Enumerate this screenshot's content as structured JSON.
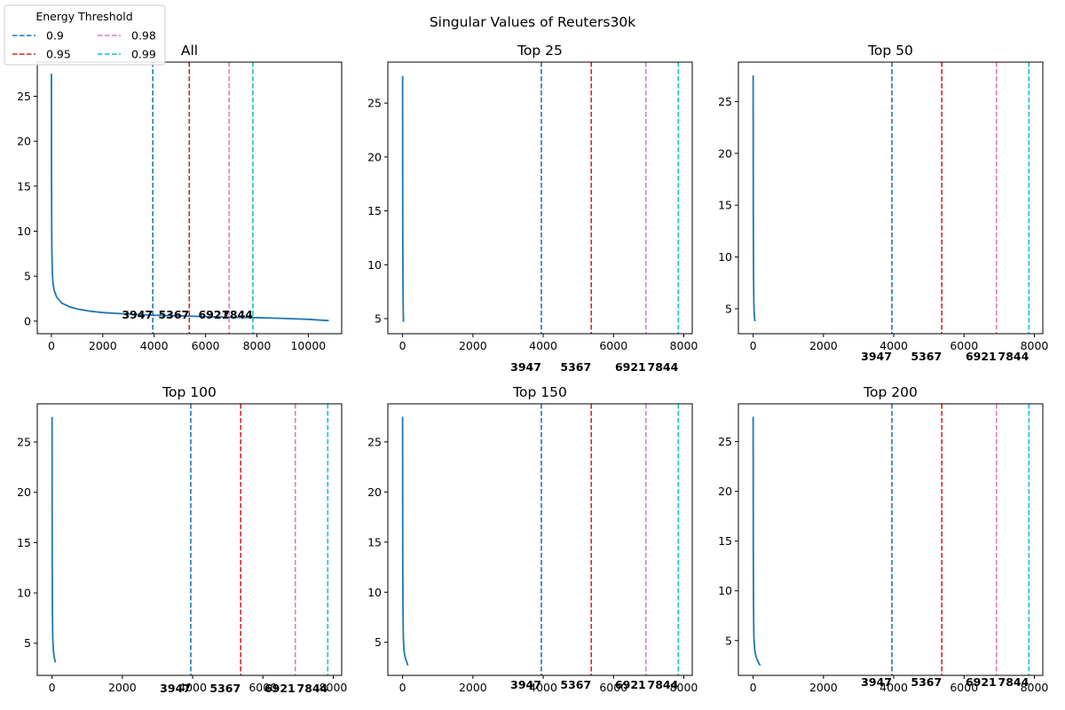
{
  "title": "Singular Values of Reuters30k",
  "legend": {
    "title": "Energy Threshold",
    "placement": "upper-left",
    "entries": [
      {
        "label": "0.9",
        "color": "#1f77b4"
      },
      {
        "label": "0.95",
        "color": "#d62728"
      },
      {
        "label": "0.98",
        "color": "#e377c2"
      },
      {
        "label": "0.99",
        "color": "#17becf"
      }
    ]
  },
  "chart_data": [
    {
      "type": "line",
      "title": "All",
      "series_color": "#1f77b4",
      "xlim": [
        -550,
        11300
      ],
      "ylim": [
        -1.4,
        28.8
      ],
      "xticks": [
        0,
        2000,
        4000,
        6000,
        8000,
        10000
      ],
      "yticks": [
        0,
        5,
        10,
        15,
        20,
        25
      ],
      "curve": [
        [
          0,
          27.5
        ],
        [
          5,
          16
        ],
        [
          10,
          11
        ],
        [
          20,
          7.5
        ],
        [
          40,
          5.2
        ],
        [
          60,
          4.3
        ],
        [
          100,
          3.5
        ],
        [
          200,
          2.7
        ],
        [
          400,
          2.0
        ],
        [
          700,
          1.6
        ],
        [
          1000,
          1.35
        ],
        [
          1500,
          1.1
        ],
        [
          2000,
          0.95
        ],
        [
          3000,
          0.78
        ],
        [
          4000,
          0.65
        ],
        [
          5000,
          0.58
        ],
        [
          6000,
          0.5
        ],
        [
          7000,
          0.43
        ],
        [
          8000,
          0.38
        ],
        [
          9000,
          0.3
        ],
        [
          10000,
          0.2
        ],
        [
          10800,
          0.05
        ]
      ],
      "thresholds": [
        {
          "x": 3947,
          "label": "3947",
          "color": "#1f77b4"
        },
        {
          "x": 5367,
          "label": "5367",
          "color": "#d62728"
        },
        {
          "x": 6921,
          "label": "6921",
          "color": "#e377c2"
        },
        {
          "x": 7844,
          "label": "7844",
          "color": "#17becf"
        }
      ],
      "label_y": 0.55
    },
    {
      "type": "line",
      "title": "Top 25",
      "series_color": "#1f77b4",
      "xlim": [
        -420,
        8240
      ],
      "ylim": [
        3.6,
        28.8
      ],
      "xticks": [
        0,
        2000,
        4000,
        6000,
        8000
      ],
      "yticks": [
        5,
        10,
        15,
        20,
        25
      ],
      "curve": [
        [
          0,
          27.5
        ],
        [
          2,
          20
        ],
        [
          5,
          13
        ],
        [
          10,
          8.5
        ],
        [
          15,
          6.5
        ],
        [
          20,
          5.3
        ],
        [
          25,
          4.7
        ]
      ],
      "thresholds": [
        {
          "x": 3947,
          "label": "3947",
          "color": "#1f77b4"
        },
        {
          "x": 5367,
          "label": "5367",
          "color": "#d62728"
        },
        {
          "x": 6921,
          "label": "6921",
          "color": "#e377c2"
        },
        {
          "x": 7844,
          "label": "7844",
          "color": "#17becf"
        }
      ],
      "label_y": 0.85
    },
    {
      "type": "line",
      "title": "Top 50",
      "series_color": "#1f77b4",
      "xlim": [
        -420,
        8240
      ],
      "ylim": [
        2.6,
        28.8
      ],
      "xticks": [
        0,
        2000,
        4000,
        6000,
        8000
      ],
      "yticks": [
        5,
        10,
        15,
        20,
        25
      ],
      "curve": [
        [
          0,
          27.5
        ],
        [
          2,
          20
        ],
        [
          5,
          13
        ],
        [
          10,
          8.5
        ],
        [
          20,
          5.5
        ],
        [
          30,
          4.6
        ],
        [
          40,
          4.1
        ],
        [
          50,
          3.8
        ]
      ],
      "thresholds": [
        {
          "x": 3947,
          "label": "3947",
          "color": "#1f77b4"
        },
        {
          "x": 5367,
          "label": "5367",
          "color": "#d62728"
        },
        {
          "x": 6921,
          "label": "6921",
          "color": "#e377c2"
        },
        {
          "x": 7844,
          "label": "7844",
          "color": "#17becf"
        }
      ],
      "label_y": 0.85
    },
    {
      "type": "line",
      "title": "Top 100",
      "series_color": "#1f77b4",
      "xlim": [
        -420,
        8240
      ],
      "ylim": [
        1.8,
        28.8
      ],
      "xticks": [
        0,
        2000,
        4000,
        6000,
        8000
      ],
      "yticks": [
        5,
        10,
        15,
        20,
        25
      ],
      "curve": [
        [
          0,
          27.5
        ],
        [
          2,
          20
        ],
        [
          5,
          13
        ],
        [
          10,
          8.5
        ],
        [
          20,
          5.5
        ],
        [
          40,
          4.2
        ],
        [
          60,
          3.7
        ],
        [
          80,
          3.3
        ],
        [
          100,
          3.1
        ]
      ],
      "thresholds": [
        {
          "x": 3947,
          "label": "3947",
          "color": "#1f77b4"
        },
        {
          "x": 5367,
          "label": "5367",
          "color": "#d62728"
        },
        {
          "x": 6921,
          "label": "6921",
          "color": "#e377c2"
        },
        {
          "x": 7844,
          "label": "7844",
          "color": "#17becf"
        }
      ],
      "label_y": 0.9
    },
    {
      "type": "line",
      "title": "Top 150",
      "series_color": "#1f77b4",
      "xlim": [
        -420,
        8240
      ],
      "ylim": [
        1.7,
        28.8
      ],
      "xticks": [
        0,
        2000,
        4000,
        6000,
        8000
      ],
      "yticks": [
        5,
        10,
        15,
        20,
        25
      ],
      "curve": [
        [
          0,
          27.5
        ],
        [
          2,
          20
        ],
        [
          5,
          13
        ],
        [
          10,
          8.5
        ],
        [
          20,
          5.5
        ],
        [
          40,
          4.2
        ],
        [
          60,
          3.7
        ],
        [
          100,
          3.2
        ],
        [
          150,
          2.7
        ]
      ],
      "thresholds": [
        {
          "x": 3947,
          "label": "3947",
          "color": "#1f77b4"
        },
        {
          "x": 5367,
          "label": "5367",
          "color": "#d62728"
        },
        {
          "x": 6921,
          "label": "6921",
          "color": "#e377c2"
        },
        {
          "x": 7844,
          "label": "7844",
          "color": "#17becf"
        }
      ],
      "label_y": 0.0
    },
    {
      "type": "line",
      "title": "Top 200",
      "series_color": "#1f77b4",
      "xlim": [
        -420,
        8240
      ],
      "ylim": [
        1.5,
        28.8
      ],
      "xticks": [
        0,
        2000,
        4000,
        6000,
        8000
      ],
      "yticks": [
        5,
        10,
        15,
        20,
        25
      ],
      "curve": [
        [
          0,
          27.5
        ],
        [
          2,
          20
        ],
        [
          5,
          13
        ],
        [
          10,
          8.5
        ],
        [
          20,
          5.5
        ],
        [
          40,
          4.2
        ],
        [
          60,
          3.7
        ],
        [
          100,
          3.2
        ],
        [
          150,
          2.8
        ],
        [
          200,
          2.5
        ]
      ],
      "thresholds": [
        {
          "x": 3947,
          "label": "3947",
          "color": "#1f77b4"
        },
        {
          "x": 5367,
          "label": "5367",
          "color": "#d62728"
        },
        {
          "x": 6921,
          "label": "6921",
          "color": "#e377c2"
        },
        {
          "x": 7844,
          "label": "7844",
          "color": "#17becf"
        }
      ],
      "label_y": 0.0
    }
  ]
}
